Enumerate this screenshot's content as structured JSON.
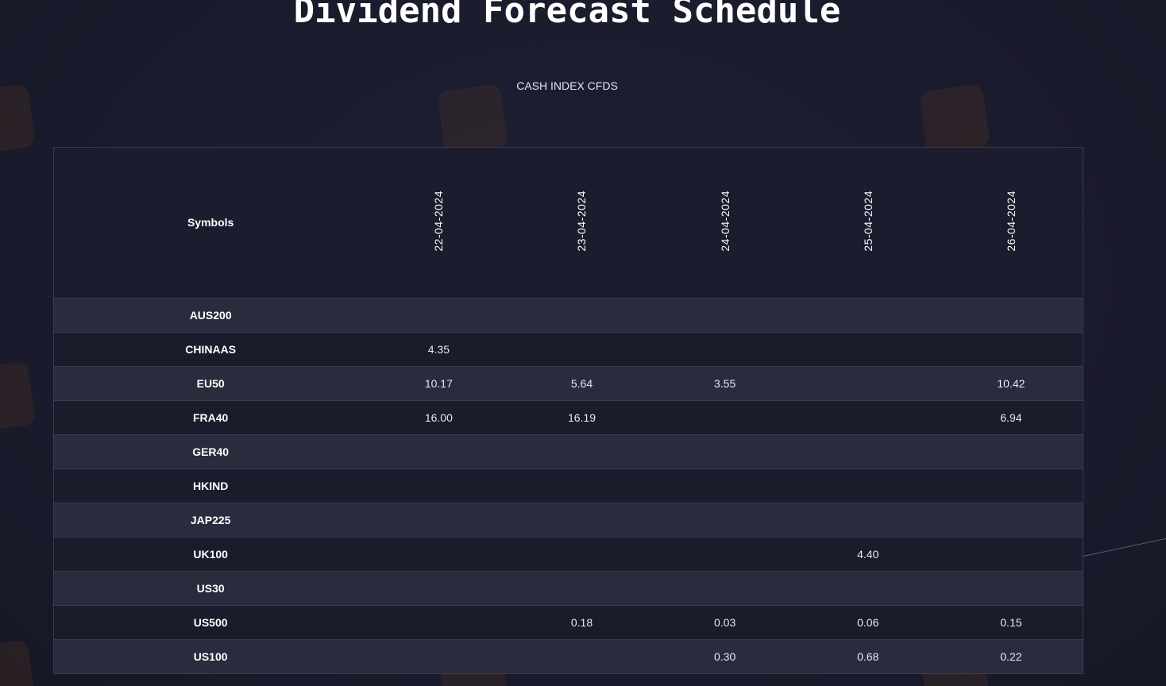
{
  "page": {
    "title": "Dividend Forecast Schedule",
    "subtitle": "CASH INDEX CFDS"
  },
  "table": {
    "symbol_header": "Symbols",
    "dates": [
      "22-04-2024",
      "23-04-2024",
      "24-04-2024",
      "25-04-2024",
      "26-04-2024"
    ],
    "rows": [
      {
        "symbol": "AUS200",
        "values": [
          "",
          "",
          "",
          "",
          ""
        ]
      },
      {
        "symbol": "CHINAAS",
        "values": [
          "4.35",
          "",
          "",
          "",
          ""
        ]
      },
      {
        "symbol": "EU50",
        "values": [
          "10.17",
          "5.64",
          "3.55",
          "",
          "10.42"
        ]
      },
      {
        "symbol": "FRA40",
        "values": [
          "16.00",
          "16.19",
          "",
          "",
          "6.94"
        ]
      },
      {
        "symbol": "GER40",
        "values": [
          "",
          "",
          "",
          "",
          ""
        ]
      },
      {
        "symbol": "HKIND",
        "values": [
          "",
          "",
          "",
          "",
          ""
        ]
      },
      {
        "symbol": "JAP225",
        "values": [
          "",
          "",
          "",
          "",
          ""
        ]
      },
      {
        "symbol": "UK100",
        "values": [
          "",
          "",
          "",
          "4.40",
          ""
        ]
      },
      {
        "symbol": "US30",
        "values": [
          "",
          "",
          "",
          "",
          ""
        ]
      },
      {
        "symbol": "US500",
        "values": [
          "",
          "0.18",
          "0.03",
          "0.06",
          "0.15"
        ]
      },
      {
        "symbol": "US100",
        "values": [
          "",
          "",
          "0.30",
          "0.68",
          "0.22"
        ]
      }
    ]
  },
  "colors": {
    "background": "#1b1c2e",
    "row_odd": "#2a2b3d",
    "row_even": "#1a1b2b",
    "border": "#3a3b4f",
    "text": "#ffffff"
  }
}
